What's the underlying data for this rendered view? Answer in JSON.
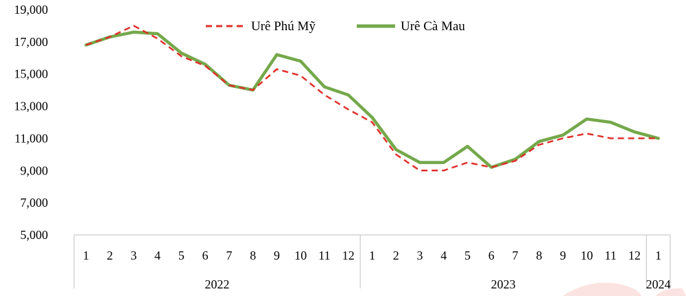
{
  "chart_data": {
    "type": "line",
    "categories": [
      "1",
      "2",
      "3",
      "4",
      "5",
      "6",
      "7",
      "8",
      "9",
      "10",
      "11",
      "12",
      "1",
      "2",
      "3",
      "4",
      "5",
      "6",
      "7",
      "8",
      "9",
      "10",
      "11",
      "12",
      "1"
    ],
    "year_groups": [
      {
        "label": "2022",
        "count": 12
      },
      {
        "label": "2023",
        "count": 12
      },
      {
        "label": "2024",
        "count": 1
      }
    ],
    "series": [
      {
        "name": "Urê Phú Mỹ",
        "color": "#e0302a",
        "dash": "dashed",
        "values": [
          16800,
          17300,
          18000,
          17200,
          16100,
          15500,
          14300,
          14000,
          15300,
          14900,
          13700,
          12800,
          12000,
          10000,
          9000,
          9000,
          9500,
          9200,
          9600,
          10600,
          11000,
          11300,
          11000,
          11000,
          11000
        ]
      },
      {
        "name": "Urê Cà Mau",
        "color": "#74a84a",
        "dash": "solid",
        "values": [
          16800,
          17300,
          17600,
          17500,
          16300,
          15600,
          14300,
          14000,
          16200,
          15800,
          14200,
          13700,
          12300,
          10300,
          9500,
          9500,
          10500,
          9200,
          9700,
          10800,
          11200,
          12200,
          12000,
          11400,
          11000
        ]
      }
    ],
    "ylim": [
      5000,
      19000
    ],
    "yticks": [
      "5,000",
      "7,000",
      "9,000",
      "11,000",
      "13,000",
      "15,000",
      "17,000",
      "19,000"
    ],
    "legend_position": "top-center"
  }
}
